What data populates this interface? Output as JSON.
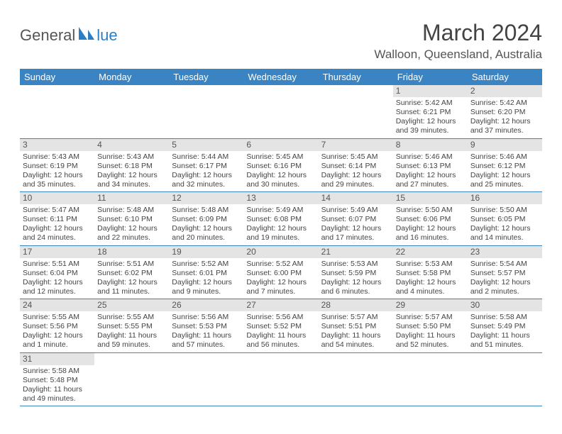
{
  "logo": {
    "text_general": "General",
    "text_blue": "lue",
    "shape_color": "#2a7ec5"
  },
  "title": "March 2024",
  "location": "Walloon, Queensland, Australia",
  "colors": {
    "header_bg": "#3b84c4",
    "header_text": "#ffffff",
    "daynum_bg": "#e4e4e4",
    "week_border": "#3b84c4",
    "body_text": "#444444",
    "logo_gray": "#555555",
    "logo_blue": "#2a7ec5",
    "background": "#ffffff"
  },
  "typography": {
    "title_fontsize": 32,
    "location_fontsize": 17,
    "weekday_fontsize": 13,
    "daynum_fontsize": 12,
    "body_fontsize": 10.5,
    "logo_fontsize": 22
  },
  "weekdays": [
    "Sunday",
    "Monday",
    "Tuesday",
    "Wednesday",
    "Thursday",
    "Friday",
    "Saturday"
  ],
  "weeks": [
    [
      null,
      null,
      null,
      null,
      null,
      {
        "n": "1",
        "sunrise": "Sunrise: 5:42 AM",
        "sunset": "Sunset: 6:21 PM",
        "day1": "Daylight: 12 hours",
        "day2": "and 39 minutes."
      },
      {
        "n": "2",
        "sunrise": "Sunrise: 5:42 AM",
        "sunset": "Sunset: 6:20 PM",
        "day1": "Daylight: 12 hours",
        "day2": "and 37 minutes."
      }
    ],
    [
      {
        "n": "3",
        "sunrise": "Sunrise: 5:43 AM",
        "sunset": "Sunset: 6:19 PM",
        "day1": "Daylight: 12 hours",
        "day2": "and 35 minutes."
      },
      {
        "n": "4",
        "sunrise": "Sunrise: 5:43 AM",
        "sunset": "Sunset: 6:18 PM",
        "day1": "Daylight: 12 hours",
        "day2": "and 34 minutes."
      },
      {
        "n": "5",
        "sunrise": "Sunrise: 5:44 AM",
        "sunset": "Sunset: 6:17 PM",
        "day1": "Daylight: 12 hours",
        "day2": "and 32 minutes."
      },
      {
        "n": "6",
        "sunrise": "Sunrise: 5:45 AM",
        "sunset": "Sunset: 6:16 PM",
        "day1": "Daylight: 12 hours",
        "day2": "and 30 minutes."
      },
      {
        "n": "7",
        "sunrise": "Sunrise: 5:45 AM",
        "sunset": "Sunset: 6:14 PM",
        "day1": "Daylight: 12 hours",
        "day2": "and 29 minutes."
      },
      {
        "n": "8",
        "sunrise": "Sunrise: 5:46 AM",
        "sunset": "Sunset: 6:13 PM",
        "day1": "Daylight: 12 hours",
        "day2": "and 27 minutes."
      },
      {
        "n": "9",
        "sunrise": "Sunrise: 5:46 AM",
        "sunset": "Sunset: 6:12 PM",
        "day1": "Daylight: 12 hours",
        "day2": "and 25 minutes."
      }
    ],
    [
      {
        "n": "10",
        "sunrise": "Sunrise: 5:47 AM",
        "sunset": "Sunset: 6:11 PM",
        "day1": "Daylight: 12 hours",
        "day2": "and 24 minutes."
      },
      {
        "n": "11",
        "sunrise": "Sunrise: 5:48 AM",
        "sunset": "Sunset: 6:10 PM",
        "day1": "Daylight: 12 hours",
        "day2": "and 22 minutes."
      },
      {
        "n": "12",
        "sunrise": "Sunrise: 5:48 AM",
        "sunset": "Sunset: 6:09 PM",
        "day1": "Daylight: 12 hours",
        "day2": "and 20 minutes."
      },
      {
        "n": "13",
        "sunrise": "Sunrise: 5:49 AM",
        "sunset": "Sunset: 6:08 PM",
        "day1": "Daylight: 12 hours",
        "day2": "and 19 minutes."
      },
      {
        "n": "14",
        "sunrise": "Sunrise: 5:49 AM",
        "sunset": "Sunset: 6:07 PM",
        "day1": "Daylight: 12 hours",
        "day2": "and 17 minutes."
      },
      {
        "n": "15",
        "sunrise": "Sunrise: 5:50 AM",
        "sunset": "Sunset: 6:06 PM",
        "day1": "Daylight: 12 hours",
        "day2": "and 16 minutes."
      },
      {
        "n": "16",
        "sunrise": "Sunrise: 5:50 AM",
        "sunset": "Sunset: 6:05 PM",
        "day1": "Daylight: 12 hours",
        "day2": "and 14 minutes."
      }
    ],
    [
      {
        "n": "17",
        "sunrise": "Sunrise: 5:51 AM",
        "sunset": "Sunset: 6:04 PM",
        "day1": "Daylight: 12 hours",
        "day2": "and 12 minutes."
      },
      {
        "n": "18",
        "sunrise": "Sunrise: 5:51 AM",
        "sunset": "Sunset: 6:02 PM",
        "day1": "Daylight: 12 hours",
        "day2": "and 11 minutes."
      },
      {
        "n": "19",
        "sunrise": "Sunrise: 5:52 AM",
        "sunset": "Sunset: 6:01 PM",
        "day1": "Daylight: 12 hours",
        "day2": "and 9 minutes."
      },
      {
        "n": "20",
        "sunrise": "Sunrise: 5:52 AM",
        "sunset": "Sunset: 6:00 PM",
        "day1": "Daylight: 12 hours",
        "day2": "and 7 minutes."
      },
      {
        "n": "21",
        "sunrise": "Sunrise: 5:53 AM",
        "sunset": "Sunset: 5:59 PM",
        "day1": "Daylight: 12 hours",
        "day2": "and 6 minutes."
      },
      {
        "n": "22",
        "sunrise": "Sunrise: 5:53 AM",
        "sunset": "Sunset: 5:58 PM",
        "day1": "Daylight: 12 hours",
        "day2": "and 4 minutes."
      },
      {
        "n": "23",
        "sunrise": "Sunrise: 5:54 AM",
        "sunset": "Sunset: 5:57 PM",
        "day1": "Daylight: 12 hours",
        "day2": "and 2 minutes."
      }
    ],
    [
      {
        "n": "24",
        "sunrise": "Sunrise: 5:55 AM",
        "sunset": "Sunset: 5:56 PM",
        "day1": "Daylight: 12 hours",
        "day2": "and 1 minute."
      },
      {
        "n": "25",
        "sunrise": "Sunrise: 5:55 AM",
        "sunset": "Sunset: 5:55 PM",
        "day1": "Daylight: 11 hours",
        "day2": "and 59 minutes."
      },
      {
        "n": "26",
        "sunrise": "Sunrise: 5:56 AM",
        "sunset": "Sunset: 5:53 PM",
        "day1": "Daylight: 11 hours",
        "day2": "and 57 minutes."
      },
      {
        "n": "27",
        "sunrise": "Sunrise: 5:56 AM",
        "sunset": "Sunset: 5:52 PM",
        "day1": "Daylight: 11 hours",
        "day2": "and 56 minutes."
      },
      {
        "n": "28",
        "sunrise": "Sunrise: 5:57 AM",
        "sunset": "Sunset: 5:51 PM",
        "day1": "Daylight: 11 hours",
        "day2": "and 54 minutes."
      },
      {
        "n": "29",
        "sunrise": "Sunrise: 5:57 AM",
        "sunset": "Sunset: 5:50 PM",
        "day1": "Daylight: 11 hours",
        "day2": "and 52 minutes."
      },
      {
        "n": "30",
        "sunrise": "Sunrise: 5:58 AM",
        "sunset": "Sunset: 5:49 PM",
        "day1": "Daylight: 11 hours",
        "day2": "and 51 minutes."
      }
    ],
    [
      {
        "n": "31",
        "sunrise": "Sunrise: 5:58 AM",
        "sunset": "Sunset: 5:48 PM",
        "day1": "Daylight: 11 hours",
        "day2": "and 49 minutes."
      },
      null,
      null,
      null,
      null,
      null,
      null
    ]
  ]
}
